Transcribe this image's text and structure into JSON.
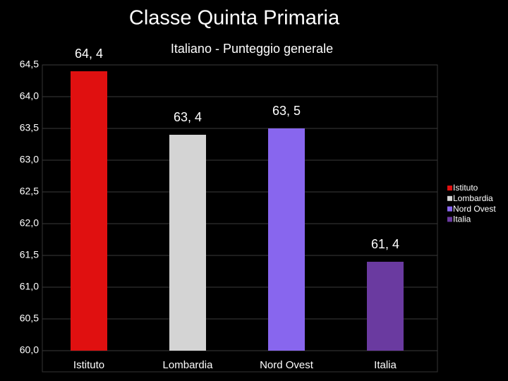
{
  "chart_data": {
    "type": "bar",
    "title": "Classe Quinta Primaria",
    "subtitle": "Italiano - Punteggio generale",
    "categories": [
      "Istituto",
      "Lombardia",
      "Nord Ovest",
      "Italia"
    ],
    "values": [
      64.4,
      63.4,
      63.5,
      61.4
    ],
    "value_labels": [
      "64, 4",
      "63, 4",
      "63, 5",
      "61, 4"
    ],
    "colors": [
      "#e01010",
      "#d4d4d4",
      "#8866ee",
      "#6a3aa0"
    ],
    "ylim": [
      60,
      64.5
    ],
    "yticks": [
      {
        "value": 60,
        "label": "60,0"
      },
      {
        "value": 60.5,
        "label": "60,5"
      },
      {
        "value": 61,
        "label": "61,0"
      },
      {
        "value": 61.5,
        "label": "61,5"
      },
      {
        "value": 62,
        "label": "62,0"
      },
      {
        "value": 62.5,
        "label": "62,5"
      },
      {
        "value": 63,
        "label": "63,0"
      },
      {
        "value": 63.5,
        "label": "63,5"
      },
      {
        "value": 64,
        "label": "64,0"
      },
      {
        "value": 64.5,
        "label": "64,5"
      }
    ],
    "grid": true,
    "legend": "right"
  }
}
